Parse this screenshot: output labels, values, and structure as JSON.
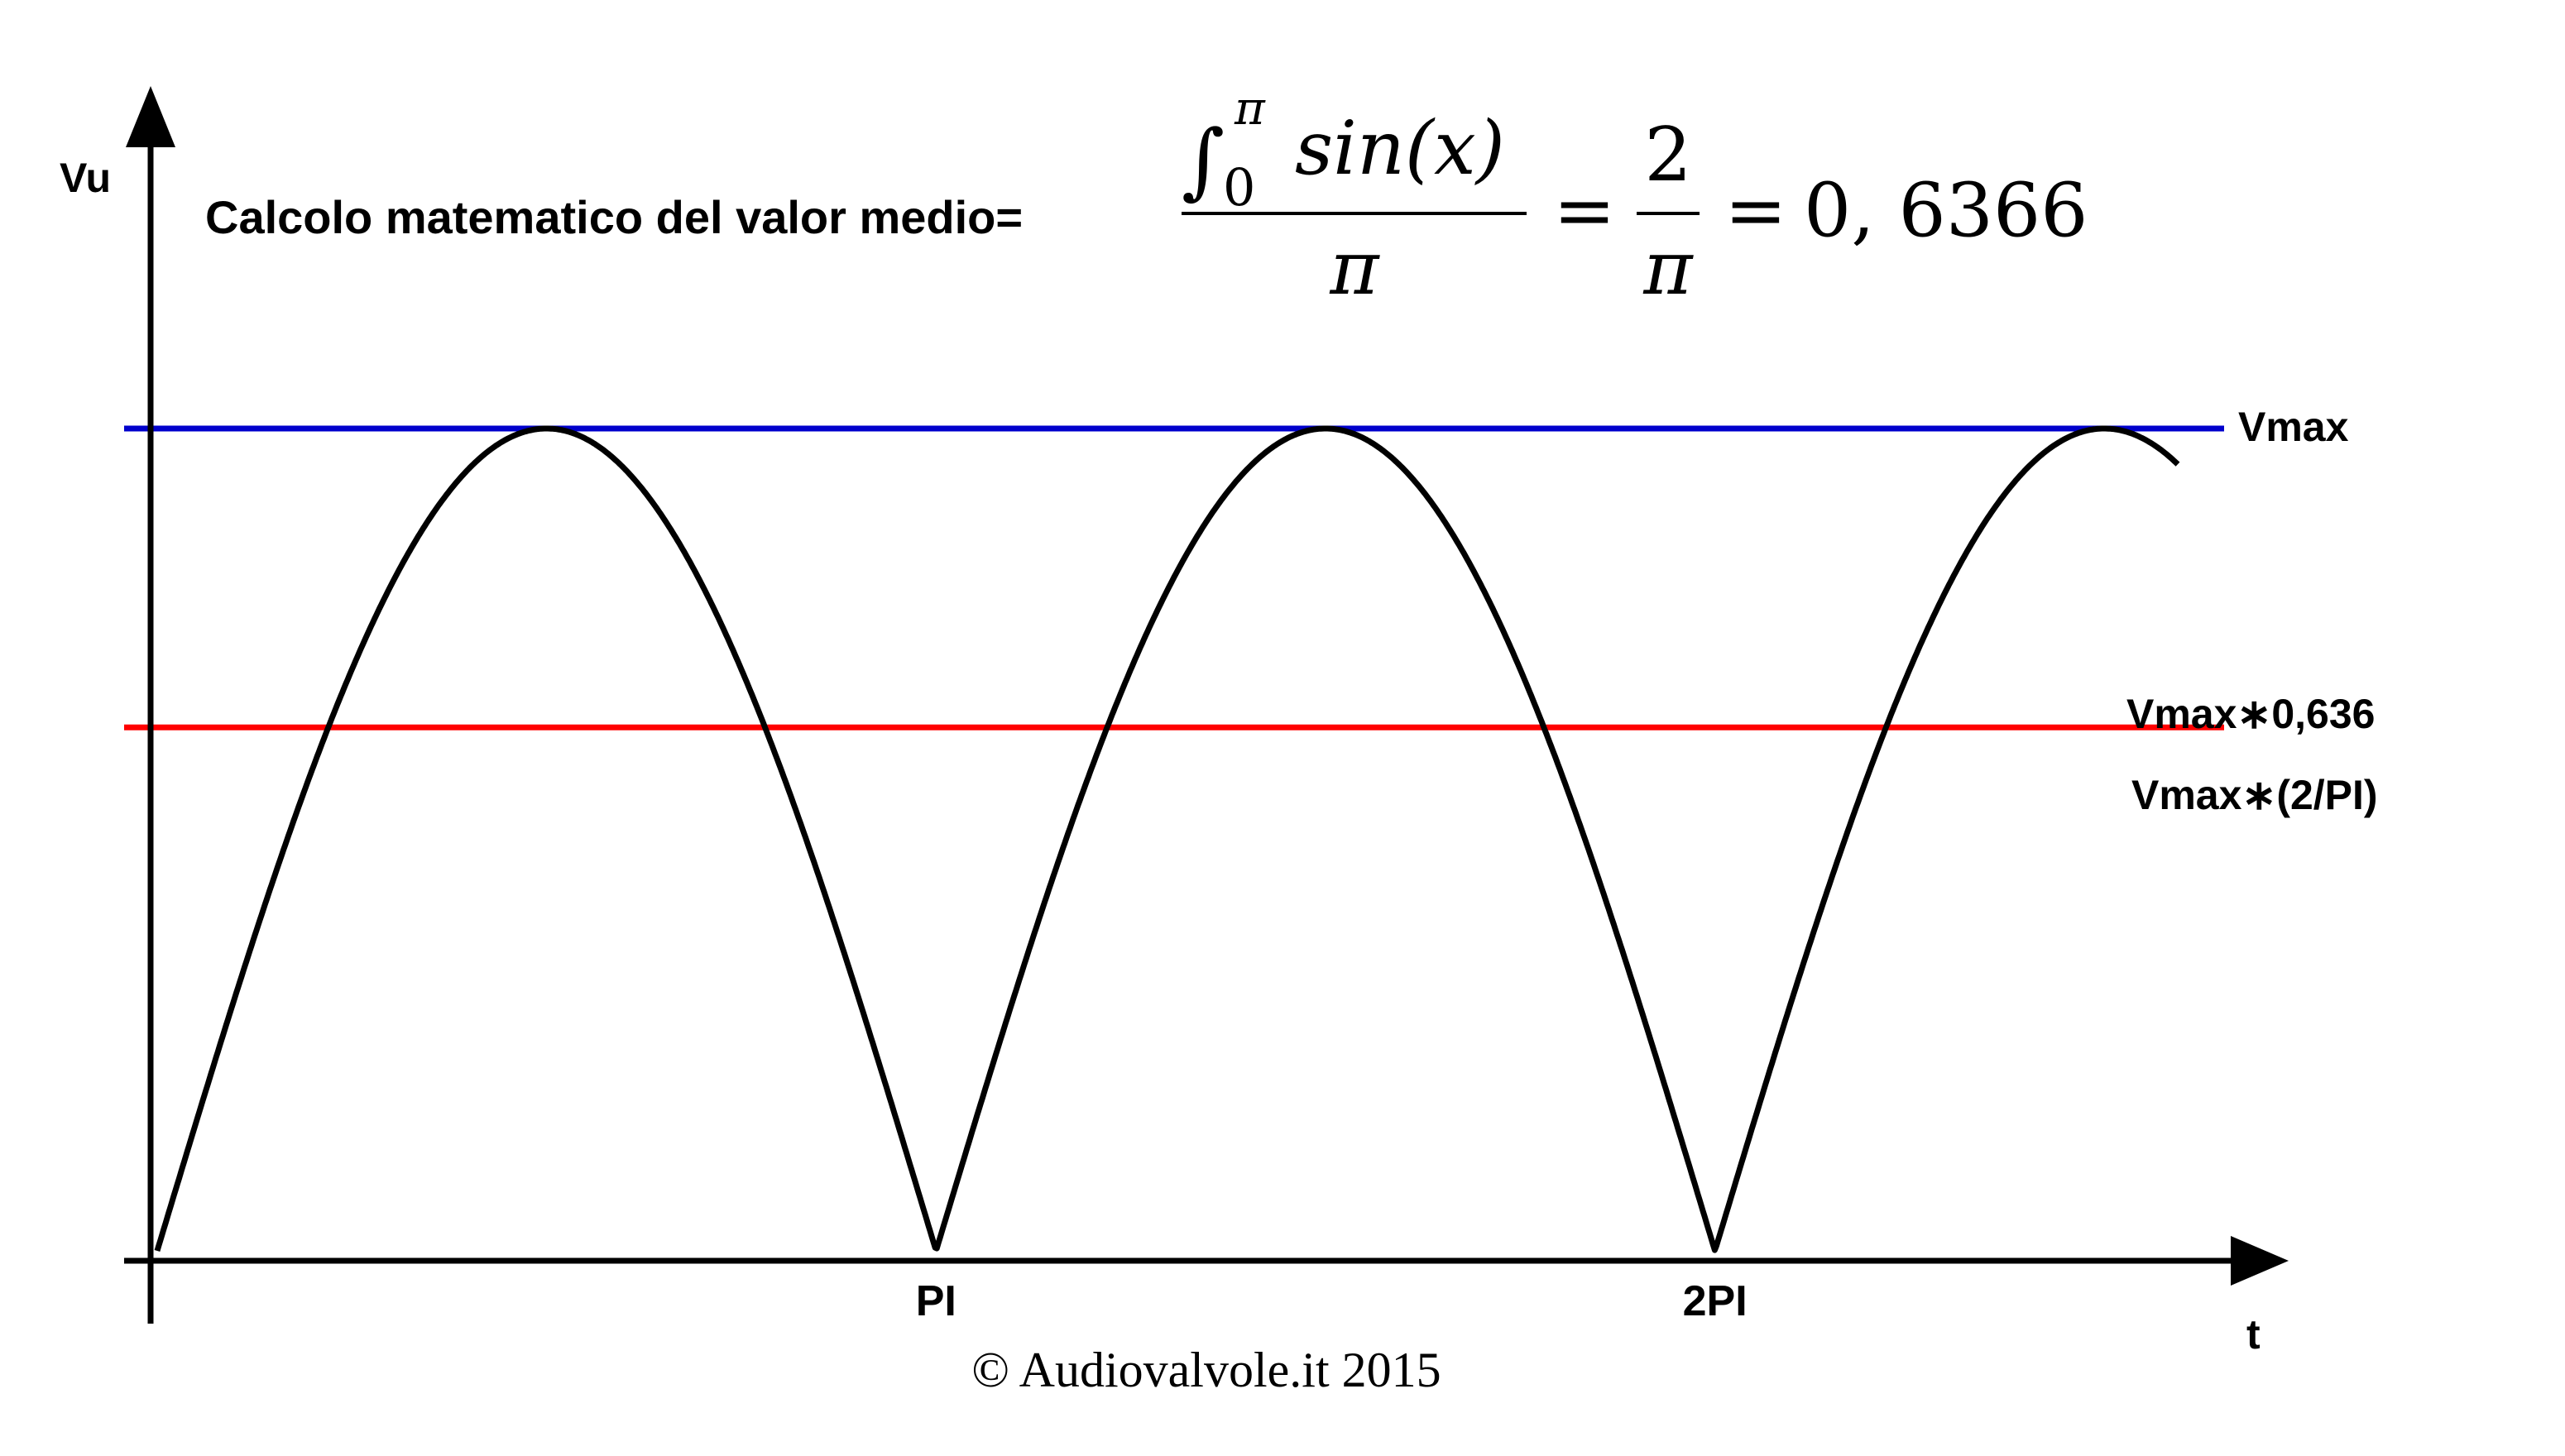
{
  "chart_data": {
    "type": "line",
    "ylabel": "Vu",
    "xlabel": "t",
    "x_tick_labels": [
      "PI",
      "2PI"
    ],
    "x_ticks": [
      3.14159,
      6.28319
    ],
    "xlim": [
      0,
      8.45
    ],
    "ylim": [
      0,
      1.12
    ],
    "series": [
      {
        "function": "|sin(t)|",
        "x_range": [
          0,
          8.15
        ],
        "color": "#000000"
      }
    ],
    "reference_lines": [
      {
        "name": "Vmax",
        "y": 1.0,
        "color": "#0000cc"
      },
      {
        "name": "Vmax∗0,636",
        "name2": "Vmax∗(2/PI)",
        "y": 0.6366,
        "color": "#ff0000"
      }
    ],
    "annotation": {
      "prefix": "Calcolo matematico del valor medio=",
      "integral_sign": "∫",
      "lower_limit": "0",
      "upper_limit": "π",
      "integrand": "sin(x)",
      "denominator": "π",
      "eq1": "=",
      "frac2_num": "2",
      "frac2_den": "π",
      "eq2": "=",
      "result": "0, 6366"
    },
    "copyright": "© Audiovalvole.it 2015"
  }
}
